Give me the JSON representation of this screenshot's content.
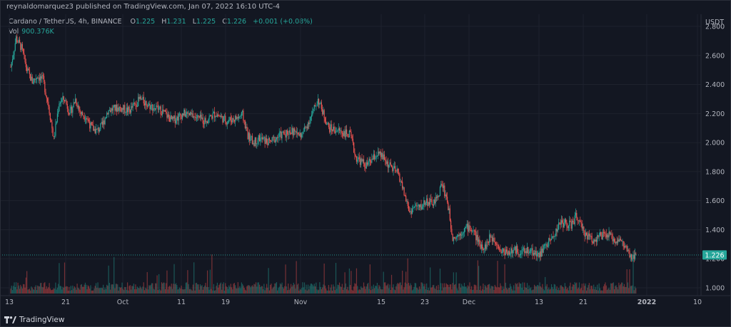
{
  "header": {
    "publisher_text": "reynaldomarquez3 published on TradingView.com, Jan 07, 2022 16:10 UTC-4"
  },
  "legend": {
    "symbol": "Cardano / TetherUS, 4h, BINANCE",
    "open_label": "O",
    "open": "1.225",
    "high_label": "H",
    "high": "1.231",
    "low_label": "L",
    "low": "1.225",
    "close_label": "C",
    "close": "1.226",
    "change": "+0.001 (+0.08%)",
    "volume_label": "Vol",
    "volume": "900.376K"
  },
  "footer": {
    "brand": "TradingView"
  },
  "colors": {
    "up": "#26a69a",
    "down": "#ef5350",
    "background": "#131722",
    "grid": "#1e222d",
    "text": "#b2b5be"
  },
  "chart_data": {
    "type": "candlestick",
    "currency": "USDT",
    "last_price": "1.226",
    "y_ticks": [
      "2.800",
      "2.600",
      "2.400",
      "2.200",
      "2.000",
      "1.800",
      "1.600",
      "1.400",
      "1.200",
      "1.000"
    ],
    "ylim": [
      1.0,
      2.8
    ],
    "x_ticks": [
      "13",
      "21",
      "Oct",
      "11",
      "19",
      "Nov",
      "15",
      "23",
      "Dec",
      "13",
      "21",
      "2022",
      "10"
    ],
    "price_anchors": [
      [
        "Sep 13",
        2.52
      ],
      [
        "Sep 14",
        2.72
      ],
      [
        "Sep 15",
        2.65
      ],
      [
        "Sep 16",
        2.5
      ],
      [
        "Sep 17",
        2.42
      ],
      [
        "Sep 18",
        2.46
      ],
      [
        "Sep 19",
        2.43
      ],
      [
        "Sep 20",
        2.26
      ],
      [
        "Sep 21",
        2.02
      ],
      [
        "Sep 22",
        2.28
      ],
      [
        "Sep 23",
        2.3
      ],
      [
        "Sep 24",
        2.2
      ],
      [
        "Sep 25",
        2.3
      ],
      [
        "Sep 26",
        2.2
      ],
      [
        "Sep 27",
        2.18
      ],
      [
        "Sep 28",
        2.1
      ],
      [
        "Sep 29",
        2.08
      ],
      [
        "Sep 30",
        2.12
      ],
      [
        "Oct 1",
        2.22
      ],
      [
        "Oct 3",
        2.24
      ],
      [
        "Oct 5",
        2.22
      ],
      [
        "Oct 7",
        2.3
      ],
      [
        "Oct 9",
        2.25
      ],
      [
        "Oct 11",
        2.22
      ],
      [
        "Oct 13",
        2.15
      ],
      [
        "Oct 15",
        2.2
      ],
      [
        "Oct 17",
        2.18
      ],
      [
        "Oct 19",
        2.15
      ],
      [
        "Oct 21",
        2.2
      ],
      [
        "Oct 23",
        2.15
      ],
      [
        "Oct 25",
        2.17
      ],
      [
        "Oct 26",
        2.19
      ],
      [
        "Oct 27",
        2.05
      ],
      [
        "Oct 28",
        2.0
      ],
      [
        "Oct 29",
        2.03
      ],
      [
        "Oct 31",
        2.0
      ],
      [
        "Nov 2",
        2.05
      ],
      [
        "Nov 4",
        2.08
      ],
      [
        "Nov 6",
        2.05
      ],
      [
        "Nov 8",
        2.2
      ],
      [
        "Nov 9",
        2.3
      ],
      [
        "Nov 10",
        2.2
      ],
      [
        "Nov 11",
        2.1
      ],
      [
        "Nov 13",
        2.08
      ],
      [
        "Nov 15",
        2.05
      ],
      [
        "Nov 16",
        1.9
      ],
      [
        "Nov 18",
        1.84
      ],
      [
        "Nov 19",
        1.88
      ],
      [
        "Nov 20",
        1.92
      ],
      [
        "Nov 21",
        1.9
      ],
      [
        "Nov 22",
        1.85
      ],
      [
        "Nov 24",
        1.78
      ],
      [
        "Nov 25",
        1.65
      ],
      [
        "Nov 26",
        1.52
      ],
      [
        "Nov 27",
        1.56
      ],
      [
        "Nov 28",
        1.55
      ],
      [
        "Nov 29",
        1.6
      ],
      [
        "Nov 30",
        1.58
      ],
      [
        "Dec 1",
        1.6
      ],
      [
        "Dec 2",
        1.72
      ],
      [
        "Dec 3",
        1.6
      ],
      [
        "Dec 4",
        1.35
      ],
      [
        "Dec 5",
        1.36
      ],
      [
        "Dec 6",
        1.4
      ],
      [
        "Dec 7",
        1.42
      ],
      [
        "Dec 8",
        1.38
      ],
      [
        "Dec 9",
        1.3
      ],
      [
        "Dec 10",
        1.28
      ],
      [
        "Dec 11",
        1.35
      ],
      [
        "Dec 12",
        1.33
      ],
      [
        "Dec 13",
        1.25
      ],
      [
        "Dec 14",
        1.25
      ],
      [
        "Dec 15",
        1.25
      ],
      [
        "Dec 16",
        1.26
      ],
      [
        "Dec 17",
        1.24
      ],
      [
        "Dec 18",
        1.26
      ],
      [
        "Dec 19",
        1.25
      ],
      [
        "Dec 20",
        1.22
      ],
      [
        "Dec 21",
        1.28
      ],
      [
        "Dec 22",
        1.32
      ],
      [
        "Dec 23",
        1.38
      ],
      [
        "Dec 24",
        1.45
      ],
      [
        "Dec 25",
        1.44
      ],
      [
        "Dec 26",
        1.43
      ],
      [
        "Dec 27",
        1.5
      ],
      [
        "Dec 28",
        1.4
      ],
      [
        "Dec 29",
        1.36
      ],
      [
        "Dec 30",
        1.33
      ],
      [
        "Dec 31",
        1.35
      ],
      [
        "Jan 1",
        1.36
      ],
      [
        "Jan 2",
        1.36
      ],
      [
        "Jan 3",
        1.33
      ],
      [
        "Jan 4",
        1.33
      ],
      [
        "Jan 5",
        1.28
      ],
      [
        "Jan 6",
        1.2
      ],
      [
        "Jan 7",
        1.226
      ]
    ]
  }
}
